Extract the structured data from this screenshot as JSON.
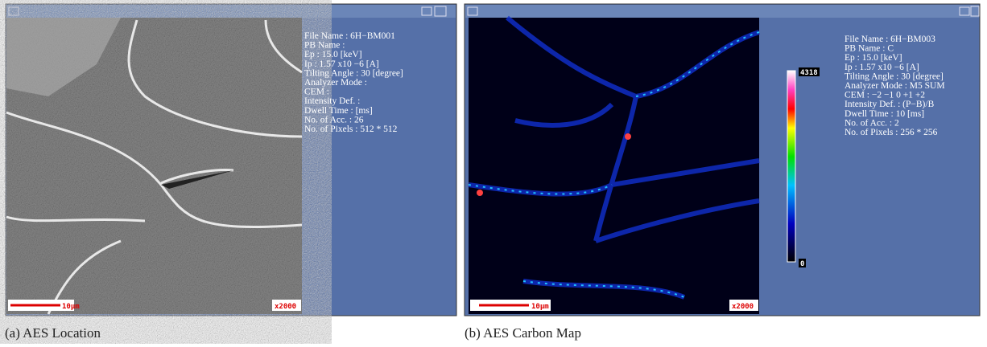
{
  "panels": [
    {
      "caption": "(a) AES Location",
      "info": [
        "File Name : 6H−BM001",
        "PB Name :",
        "Ep : 15.0 [keV]",
        "Ip :  1.57 x10 −6 [A]",
        "Tilting Angle : 30 [degree]",
        "Analyzer Mode :",
        "CEM :",
        "Intensity Def. :",
        "Dwell Time :  [ms]",
        "No. of Acc. : 26",
        "No. of Pixels : 512 * 512"
      ],
      "scale_label": "10μm",
      "magnification": "x2000"
    },
    {
      "caption": "(b) AES Carbon Map",
      "info": [
        "File Name : 6H−BM003",
        "PB Name : C",
        "Ep : 15.0 [keV]",
        "Ip :  1.57 x10 −6 [A]",
        "Tilting Angle : 30 [degree]",
        "Analyzer Mode : M5 SUM",
        "CEM : −2  −1  0  +1  +2",
        "Intensity Def. : (P−B)/B",
        "Dwell Time : 10 [ms]",
        "No. of Acc. : 2",
        "No. of Pixels : 256 * 256"
      ],
      "scale_label": "10μm",
      "magnification": "x2000",
      "colorbar_max": "4318",
      "colorbar_min": "0"
    }
  ]
}
